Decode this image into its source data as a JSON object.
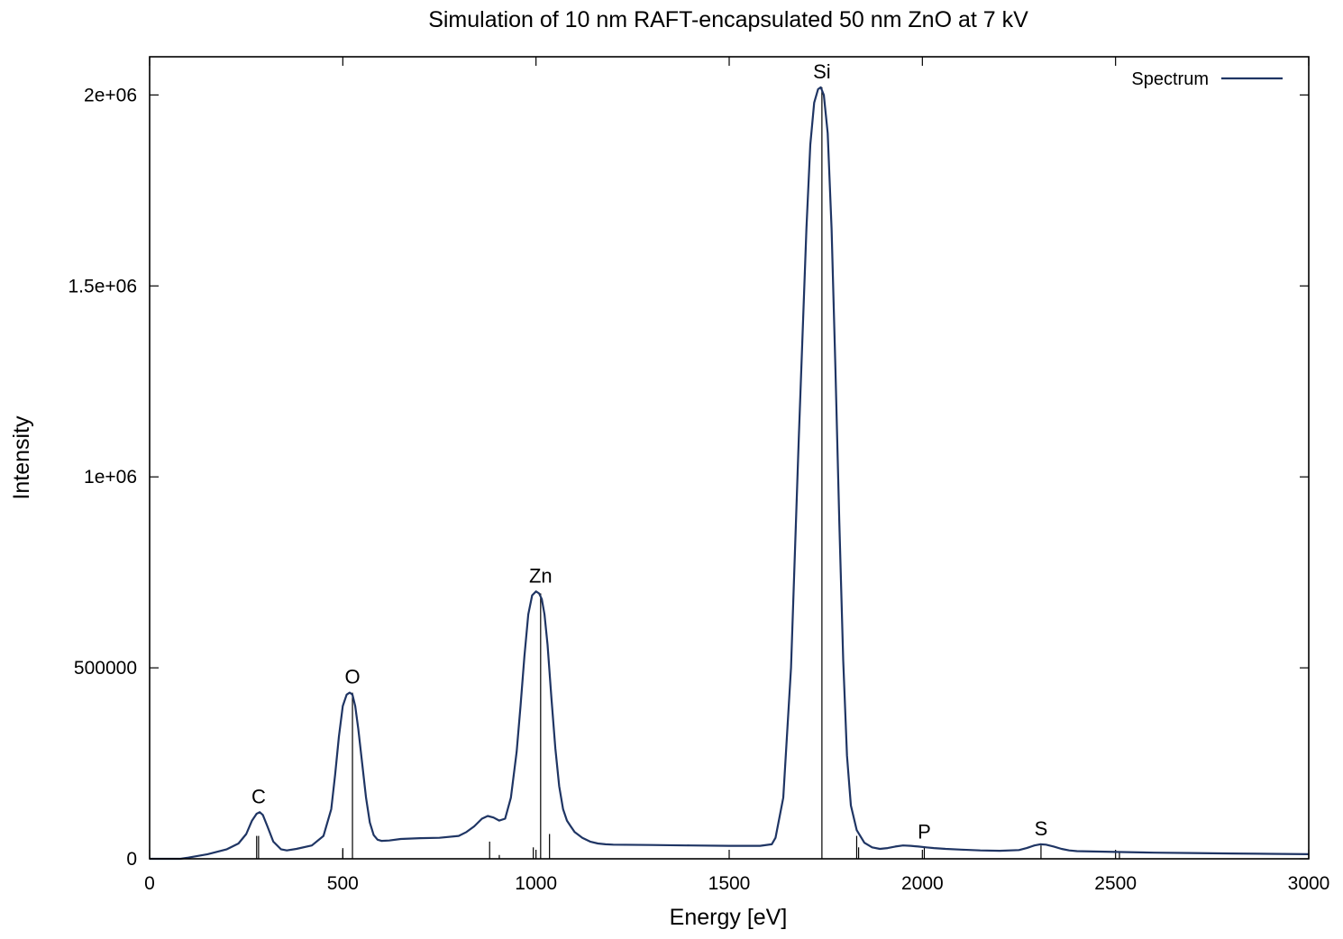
{
  "chart_data": {
    "type": "line",
    "title": "Simulation of 10 nm RAFT-encapsulated 50 nm ZnO at 7 kV",
    "xlabel": "Energy [eV]",
    "ylabel": "Intensity",
    "xlim": [
      0,
      3000
    ],
    "ylim": [
      0,
      2100000
    ],
    "xticks": [
      0,
      500,
      1000,
      1500,
      2000,
      2500,
      3000
    ],
    "xtick_labels": [
      "0",
      "500",
      "1000",
      "1500",
      "2000",
      "2500",
      "3000"
    ],
    "yticks": [
      0,
      500000,
      1000000,
      1500000,
      2000000
    ],
    "ytick_labels": [
      "0",
      "500000",
      "1e+06",
      "1.5e+06",
      "2e+06"
    ],
    "grid": false,
    "legend": {
      "position": "top-right"
    },
    "colors": {
      "series": "#1f3564",
      "marker_lines": "#000000"
    },
    "series": [
      {
        "name": "Spectrum",
        "x": [
          0,
          80,
          100,
          150,
          200,
          230,
          250,
          265,
          277,
          285,
          293,
          305,
          320,
          340,
          355,
          380,
          420,
          450,
          470,
          480,
          490,
          500,
          510,
          518,
          525,
          532,
          540,
          550,
          560,
          570,
          580,
          590,
          600,
          620,
          650,
          700,
          750,
          800,
          820,
          840,
          860,
          875,
          890,
          905,
          920,
          935,
          950,
          960,
          970,
          980,
          990,
          1000,
          1008,
          1015,
          1022,
          1030,
          1040,
          1050,
          1060,
          1070,
          1080,
          1090,
          1100,
          1120,
          1140,
          1160,
          1180,
          1200,
          1300,
          1400,
          1500,
          1580,
          1610,
          1620,
          1640,
          1660,
          1680,
          1700,
          1710,
          1720,
          1730,
          1737,
          1745,
          1755,
          1765,
          1775,
          1785,
          1795,
          1805,
          1815,
          1830,
          1850,
          1870,
          1890,
          1910,
          1930,
          1950,
          1970,
          1990,
          2010,
          2030,
          2060,
          2100,
          2150,
          2200,
          2250,
          2270,
          2290,
          2305,
          2320,
          2340,
          2360,
          2380,
          2400,
          2500,
          2600,
          2700,
          2800,
          2900,
          3000
        ],
        "y": [
          0,
          0,
          3000,
          12000,
          25000,
          40000,
          65000,
          100000,
          118000,
          122000,
          115000,
          85000,
          45000,
          25000,
          22000,
          26000,
          35000,
          60000,
          130000,
          220000,
          320000,
          400000,
          430000,
          435000,
          430000,
          400000,
          340000,
          250000,
          160000,
          95000,
          62000,
          50000,
          47000,
          48000,
          52000,
          54000,
          55000,
          60000,
          70000,
          85000,
          105000,
          112000,
          108000,
          100000,
          105000,
          160000,
          280000,
          400000,
          530000,
          640000,
          690000,
          700000,
          695000,
          680000,
          640000,
          560000,
          420000,
          290000,
          190000,
          130000,
          100000,
          85000,
          70000,
          55000,
          45000,
          40000,
          38000,
          37000,
          36000,
          35000,
          34000,
          34000,
          38000,
          55000,
          160000,
          500000,
          1100000,
          1650000,
          1870000,
          1980000,
          2015000,
          2020000,
          2000000,
          1900000,
          1650000,
          1280000,
          880000,
          520000,
          270000,
          140000,
          75000,
          42000,
          30000,
          26000,
          28000,
          32000,
          35000,
          34000,
          32000,
          30000,
          28000,
          26000,
          24000,
          22000,
          21000,
          23000,
          28000,
          35000,
          38000,
          37000,
          32000,
          26000,
          22000,
          20000,
          18000,
          16000,
          15000,
          14000,
          13000,
          12000
        ]
      }
    ],
    "marker_lines": [
      {
        "x": 277,
        "height": 60000
      },
      {
        "x": 282,
        "height": 60000
      },
      {
        "x": 525,
        "height": 435000
      },
      {
        "x": 500,
        "height": 28000
      },
      {
        "x": 880,
        "height": 45000
      },
      {
        "x": 905,
        "height": 10000
      },
      {
        "x": 993,
        "height": 30000
      },
      {
        "x": 1012,
        "height": 695000
      },
      {
        "x": 1035,
        "height": 65000
      },
      {
        "x": 1740,
        "height": 2020000
      },
      {
        "x": 1830,
        "height": 60000
      },
      {
        "x": 1835,
        "height": 30000
      },
      {
        "x": 2005,
        "height": 30000
      },
      {
        "x": 2307,
        "height": 35000
      },
      {
        "x": 2510,
        "height": 20000
      }
    ],
    "annotations": [
      {
        "text": "C",
        "x": 282,
        "y": 122000
      },
      {
        "text": "O",
        "x": 525,
        "y": 435000
      },
      {
        "text": "Zn",
        "x": 1012,
        "y": 700000
      },
      {
        "text": "Si",
        "x": 1740,
        "y": 2020000
      },
      {
        "text": "P",
        "x": 2005,
        "y": 30000
      },
      {
        "text": "S",
        "x": 2307,
        "y": 38000
      }
    ]
  }
}
